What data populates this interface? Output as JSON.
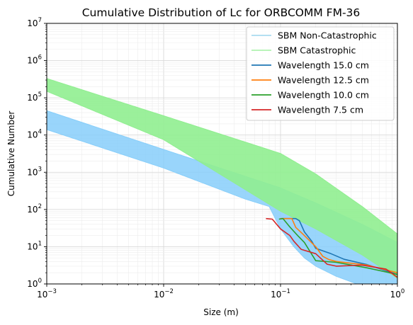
{
  "chart_data": {
    "type": "line",
    "title": "Cumulative Distribution of Lc for ORBCOMM FM-36",
    "xlabel": "Size (m)",
    "ylabel": "Cumulative Number",
    "xscale": "log",
    "yscale": "log",
    "xlim": [
      0.001,
      1
    ],
    "ylim": [
      1,
      10000000
    ],
    "grid": true,
    "legend_position": "top-right",
    "x_ticks": [
      {
        "base": "10",
        "exp": "−3",
        "value": 0.001
      },
      {
        "base": "10",
        "exp": "−2",
        "value": 0.01
      },
      {
        "base": "10",
        "exp": "−1",
        "value": 0.1
      },
      {
        "base": "10",
        "exp": "0",
        "value": 1
      }
    ],
    "y_ticks": [
      {
        "base": "10",
        "exp": "0",
        "value": 1
      },
      {
        "base": "10",
        "exp": "1",
        "value": 10
      },
      {
        "base": "10",
        "exp": "2",
        "value": 100
      },
      {
        "base": "10",
        "exp": "3",
        "value": 1000
      },
      {
        "base": "10",
        "exp": "4",
        "value": 10000
      },
      {
        "base": "10",
        "exp": "5",
        "value": 100000
      },
      {
        "base": "10",
        "exp": "6",
        "value": 1000000
      },
      {
        "base": "10",
        "exp": "7",
        "value": 10000000
      }
    ],
    "bands": [
      {
        "name": "SBM Non-Catastrophic",
        "legend_color": "#87ceeb",
        "fill_color": "#87cefa",
        "upper": [
          [
            0.001,
            45000
          ],
          [
            0.01,
            4100
          ],
          [
            0.1,
            380
          ],
          [
            0.2,
            150
          ],
          [
            0.5,
            40
          ],
          [
            1,
            13
          ]
        ],
        "lower": [
          [
            0.001,
            14000
          ],
          [
            0.01,
            1300
          ],
          [
            0.05,
            190
          ],
          [
            0.08,
            120
          ],
          [
            0.1,
            30
          ],
          [
            0.13,
            10
          ],
          [
            0.16,
            5
          ],
          [
            0.2,
            3
          ],
          [
            0.3,
            1.6
          ],
          [
            0.45,
            1.0
          ],
          [
            1,
            1.0
          ]
        ]
      },
      {
        "name": "SBM Catastrophic",
        "legend_color": "#90ee90",
        "fill_color": "#90ee90",
        "upper": [
          [
            0.001,
            330000
          ],
          [
            0.01,
            33000
          ],
          [
            0.1,
            3200
          ],
          [
            0.2,
            900
          ],
          [
            0.5,
            120
          ],
          [
            1,
            22
          ]
        ],
        "lower": [
          [
            0.001,
            150000
          ],
          [
            0.01,
            7500
          ],
          [
            0.1,
            90
          ],
          [
            0.2,
            30
          ],
          [
            0.5,
            6
          ],
          [
            1,
            1.4
          ]
        ]
      }
    ],
    "series": [
      {
        "name": "Wavelength 15.0 cm",
        "color": "#1f77b4",
        "points": [
          [
            0.102,
            57
          ],
          [
            0.135,
            57
          ],
          [
            0.145,
            50
          ],
          [
            0.16,
            25
          ],
          [
            0.185,
            14
          ],
          [
            0.2,
            9
          ],
          [
            0.27,
            6.5
          ],
          [
            0.35,
            4.6
          ],
          [
            0.55,
            3.3
          ],
          [
            1.0,
            1.8
          ]
        ]
      },
      {
        "name": "Wavelength 12.5 cm",
        "color": "#ff7f0e",
        "points": [
          [
            0.1,
            57
          ],
          [
            0.125,
            57
          ],
          [
            0.135,
            33
          ],
          [
            0.155,
            22
          ],
          [
            0.2,
            10
          ],
          [
            0.23,
            5.5
          ],
          [
            0.26,
            4.5
          ],
          [
            0.3,
            4.0
          ],
          [
            0.55,
            3.2
          ],
          [
            1.0,
            2.0
          ]
        ]
      },
      {
        "name": "Wavelength 10.0 cm",
        "color": "#2ca02c",
        "points": [
          [
            0.097,
            55
          ],
          [
            0.105,
            57
          ],
          [
            0.12,
            34
          ],
          [
            0.14,
            20
          ],
          [
            0.16,
            13
          ],
          [
            0.2,
            4.2
          ],
          [
            0.3,
            3.8
          ],
          [
            0.55,
            2.7
          ],
          [
            1.0,
            1.8
          ]
        ]
      },
      {
        "name": "Wavelength 7.5 cm",
        "color": "#d62728",
        "points": [
          [
            0.075,
            57
          ],
          [
            0.085,
            55
          ],
          [
            0.1,
            30
          ],
          [
            0.12,
            20
          ],
          [
            0.13,
            14
          ],
          [
            0.15,
            8.5
          ],
          [
            0.2,
            6.5
          ],
          [
            0.25,
            3.4
          ],
          [
            0.3,
            3.0
          ],
          [
            0.5,
            3.2
          ],
          [
            0.8,
            2.5
          ],
          [
            1.0,
            1.5
          ]
        ]
      }
    ]
  }
}
